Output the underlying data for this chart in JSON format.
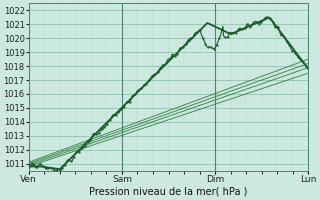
{
  "xlabel": "Pression niveau de la mer( hPa )",
  "bg_color": "#cce8e0",
  "grid_color_minor": "#b0d8cc",
  "grid_color_major": "#88bba8",
  "line_dark": "#1a5c2a",
  "line_medium": "#2d7a3a",
  "line_light": "#4a8c5a",
  "xlim": [
    0,
    72
  ],
  "ylim": [
    1010.5,
    1022.5
  ],
  "yticks": [
    1011,
    1012,
    1013,
    1014,
    1015,
    1016,
    1017,
    1018,
    1019,
    1020,
    1021,
    1022
  ],
  "xtick_positions": [
    0,
    24,
    48,
    72
  ],
  "xtick_labels": [
    "Ven",
    "Sam",
    "Dim",
    "Lun"
  ],
  "figsize": [
    3.2,
    2.0
  ],
  "dpi": 100
}
